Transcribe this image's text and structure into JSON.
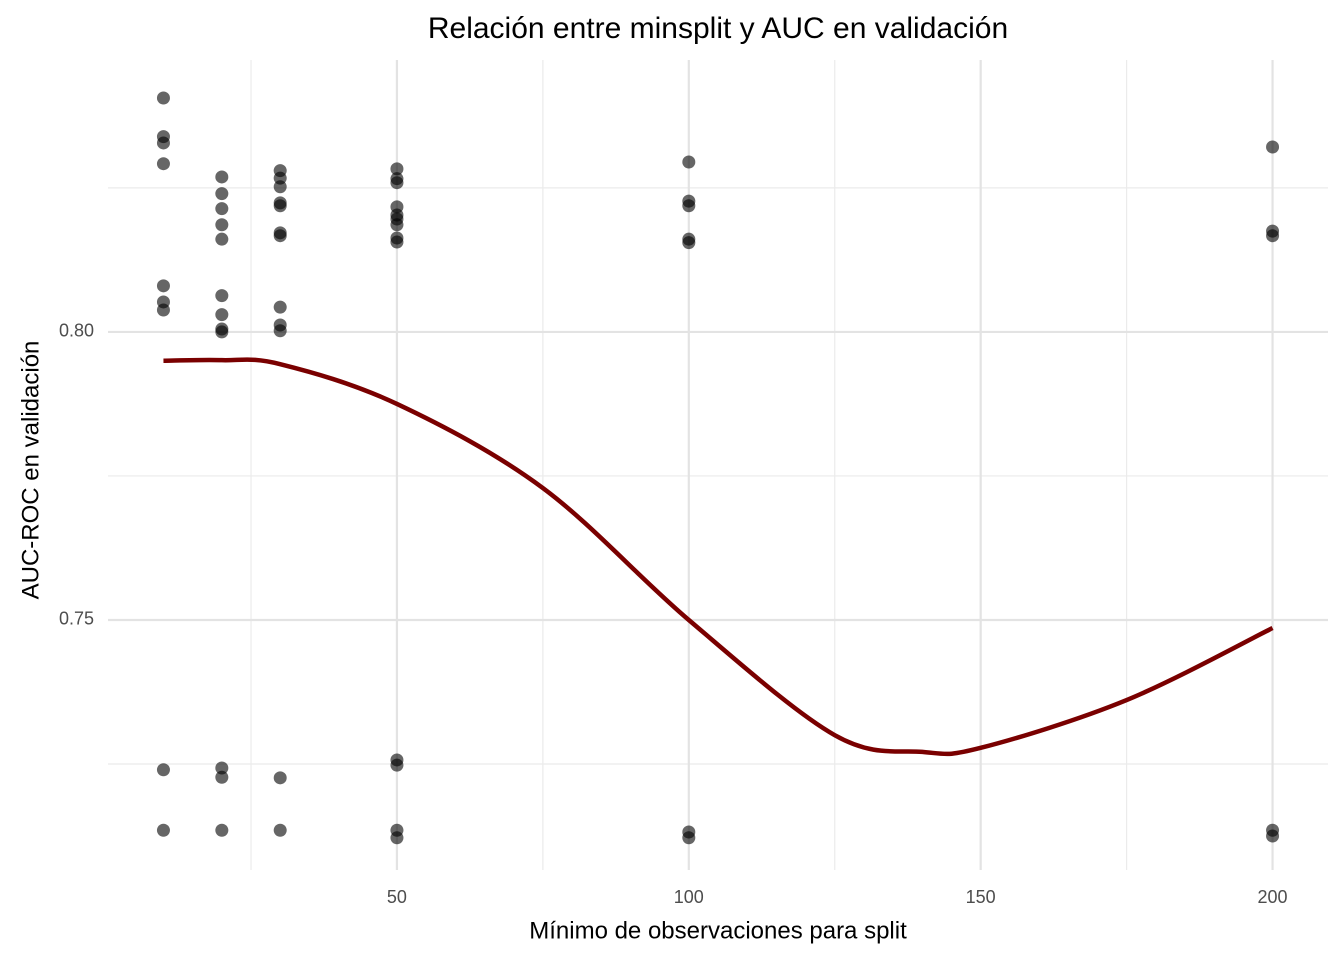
{
  "chart_data": {
    "type": "scatter",
    "title": "Relación entre minsplit y AUC en validación",
    "x_label": "Mínimo de observaciones para split",
    "y_label": "AUC-ROC en validación",
    "xlim": [
      0.5,
      209.5
    ],
    "ylim": [
      0.7066,
      0.8472
    ],
    "xticks": [
      50,
      100,
      150,
      200
    ],
    "yticks": [
      0.75,
      {
        "value": 0.8,
        "label": "0.80"
      }
    ],
    "x_minor_grid": [
      25,
      75,
      125,
      175
    ],
    "y_minor_grid": [
      0.725,
      0.775,
      0.825
    ],
    "grid": true,
    "series": [
      {
        "type": "scatter",
        "color": "#000000",
        "x": [
          10,
          10,
          10,
          10,
          10,
          10,
          10,
          10,
          10,
          20,
          20,
          20,
          20,
          20,
          20,
          20,
          20,
          20,
          20,
          20,
          20,
          30,
          30,
          30,
          30,
          30,
          30,
          30,
          30,
          30,
          30,
          30,
          30,
          50,
          50,
          50,
          50,
          50,
          50,
          50,
          50,
          50,
          50,
          50,
          50,
          50,
          100,
          100,
          100,
          100,
          100,
          100,
          100,
          200,
          200,
          200,
          200,
          200
        ],
        "values": [
          0.8406,
          0.8339,
          0.8328,
          0.8292,
          0.808,
          0.8052,
          0.8038,
          0.724,
          0.7135,
          0.8269,
          0.824,
          0.8214,
          0.8186,
          0.8161,
          0.8063,
          0.803,
          0.8005,
          0.8,
          0.7243,
          0.7227,
          0.7135,
          0.828,
          0.8267,
          0.8252,
          0.8224,
          0.8219,
          0.8172,
          0.8167,
          0.8043,
          0.8012,
          0.8002,
          0.7226,
          0.7135,
          0.8283,
          0.8266,
          0.8259,
          0.8217,
          0.8203,
          0.8196,
          0.8186,
          0.8163,
          0.8156,
          0.7257,
          0.7248,
          0.7135,
          0.7122,
          0.8295,
          0.8227,
          0.8219,
          0.8161,
          0.8155,
          0.7132,
          0.7122,
          0.8321,
          0.8175,
          0.8167,
          0.7135,
          0.7125
        ]
      },
      {
        "type": "line",
        "color": "#7a0000",
        "x": [
          10,
          20,
          30,
          50,
          75,
          100,
          125,
          140,
          150,
          175,
          200
        ],
        "values": [
          0.795,
          0.7951,
          0.7944,
          0.7875,
          0.7729,
          0.75,
          0.73,
          0.7271,
          0.7278,
          0.7361,
          0.7486
        ]
      }
    ]
  }
}
